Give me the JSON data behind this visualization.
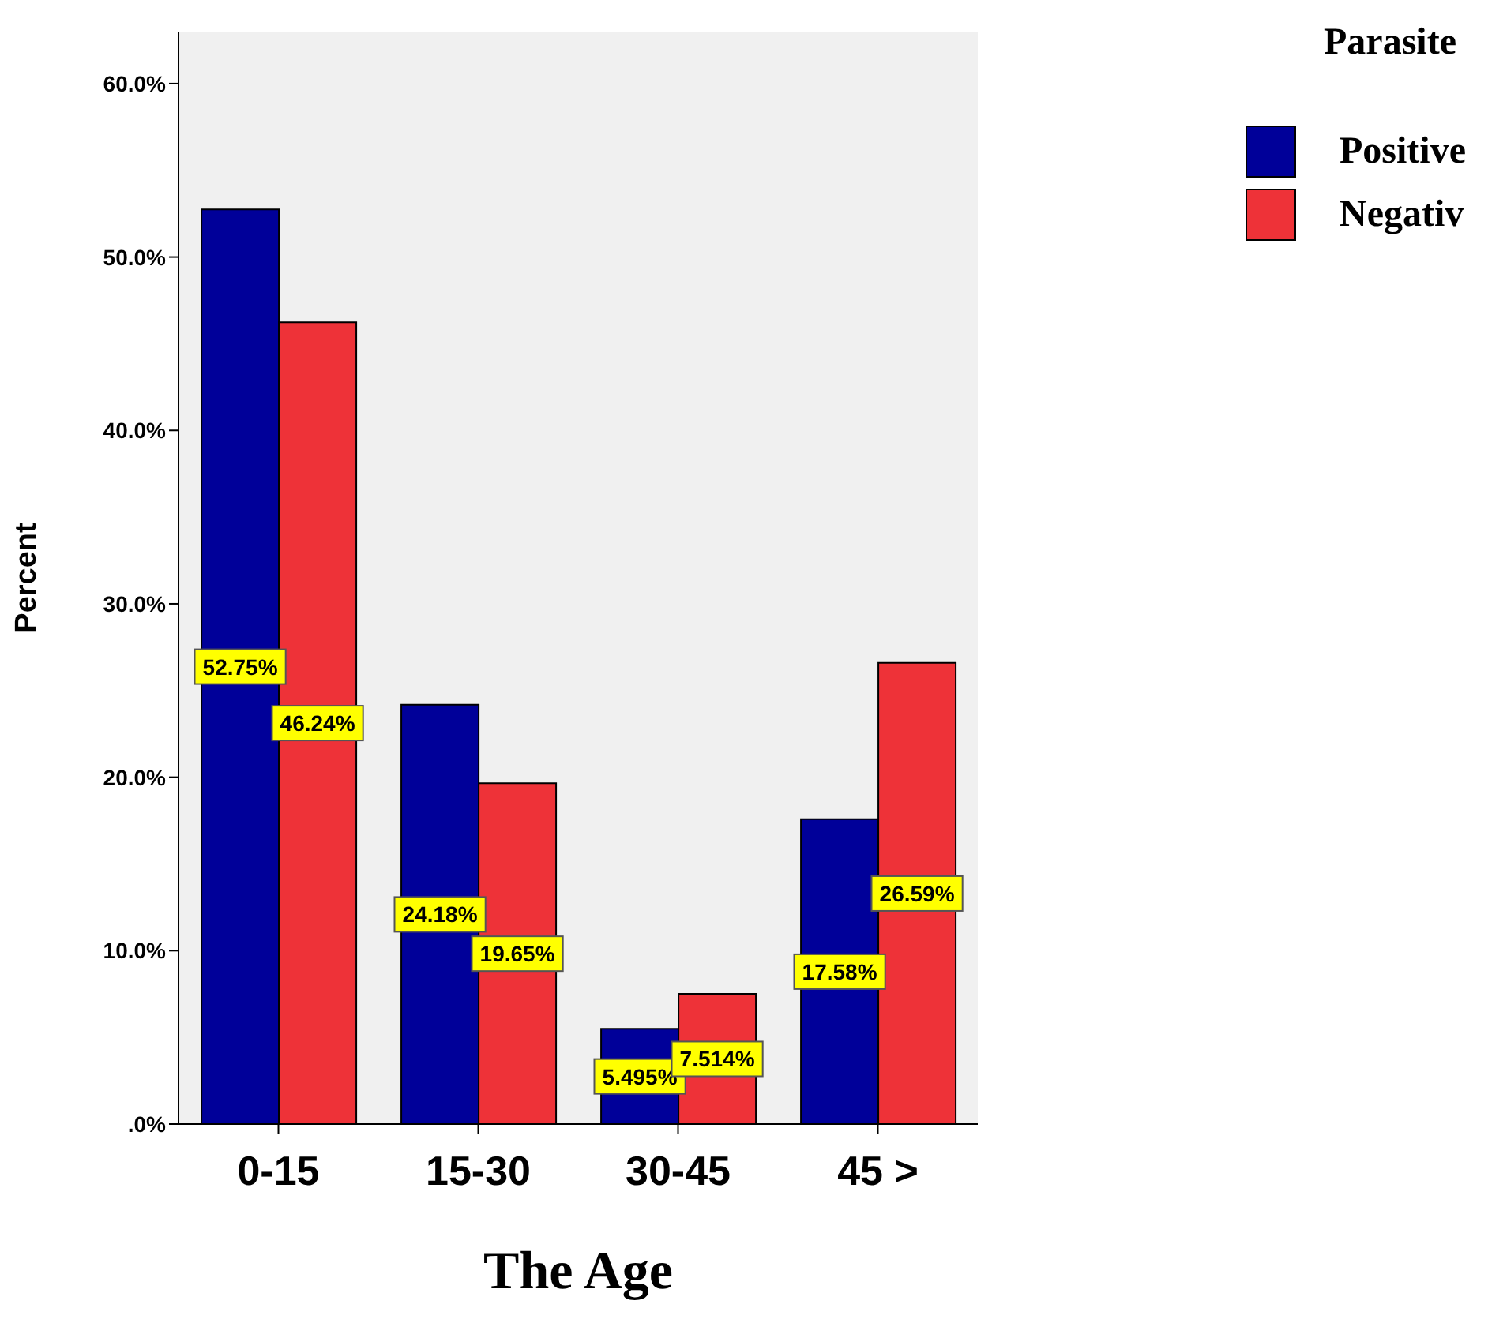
{
  "chart_data": {
    "type": "bar",
    "xlabel": "The Age",
    "ylabel": "Percent",
    "legend_title": "Parasite",
    "categories": [
      "0-15",
      "15-30",
      "30-45",
      "45 >"
    ],
    "series": [
      {
        "name": "Positive",
        "color": "#000099",
        "values": [
          52.75,
          24.18,
          5.495,
          17.58
        ],
        "value_labels": [
          "52.75%",
          "24.18%",
          "5.495%",
          "17.58%"
        ]
      },
      {
        "name": "Negativ",
        "color": "#ee3238",
        "values": [
          46.24,
          19.65,
          7.514,
          26.59
        ],
        "value_labels": [
          "46.24%",
          "19.65%",
          "7.514%",
          "26.59%"
        ]
      }
    ],
    "ylim": [
      0,
      63
    ],
    "yticks": [
      {
        "value": 0,
        "label": ".0%"
      },
      {
        "value": 10,
        "label": "10.0%"
      },
      {
        "value": 20,
        "label": "20.0%"
      },
      {
        "value": 30,
        "label": "30.0%"
      },
      {
        "value": 40,
        "label": "40.0%"
      },
      {
        "value": 50,
        "label": "50.0%"
      },
      {
        "value": 60,
        "label": "60.0%"
      }
    ],
    "grid": false,
    "legend": "top right"
  }
}
